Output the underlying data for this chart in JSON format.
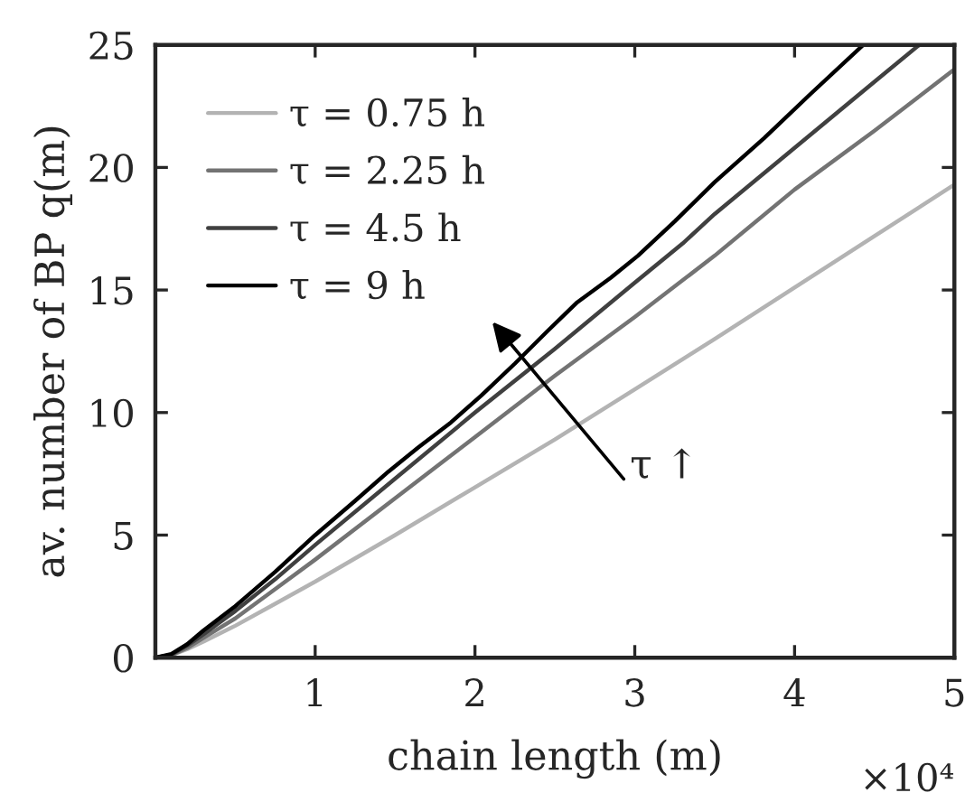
{
  "chart_data": {
    "type": "line",
    "xlabel": "chain length (m)",
    "ylabel": "av. number of BP q(m)",
    "xlim": [
      0,
      5
    ],
    "xticks": [
      1,
      2,
      3,
      4,
      5
    ],
    "ylim": [
      0,
      25
    ],
    "yticks": [
      0,
      5,
      10,
      15,
      20,
      25
    ],
    "legend": "top left",
    "line_style": "solid",
    "series": [
      {
        "name": "τ = 0.75 h",
        "color": "#b3b3b3",
        "x": [
          0,
          0.1,
          0.2,
          0.3,
          0.5,
          0.75,
          1,
          1.5,
          2,
          2.5,
          3,
          3.5,
          4,
          4.5,
          5
        ],
        "values": [
          0,
          0.1,
          0.35,
          0.65,
          1.3,
          2.2,
          3.1,
          5.0,
          6.95,
          8.9,
          10.95,
          13.0,
          15.1,
          17.2,
          19.3
        ]
      },
      {
        "name": "τ = 2.25 h",
        "color": "#737373",
        "x": [
          0,
          0.1,
          0.2,
          0.3,
          0.5,
          0.75,
          1,
          1.5,
          2,
          2.5,
          3,
          3.5,
          4,
          4.5,
          5
        ],
        "values": [
          0,
          0.1,
          0.4,
          0.8,
          1.6,
          2.8,
          4.0,
          6.5,
          9.0,
          11.5,
          13.9,
          16.4,
          19.1,
          21.5,
          24.0
        ]
      },
      {
        "name": "τ = 4.5 h",
        "color": "#404040",
        "x": [
          0,
          0.1,
          0.2,
          0.3,
          0.5,
          0.75,
          1,
          1.5,
          2,
          2.5,
          3,
          3.3,
          3.5,
          4,
          4.5,
          4.78
        ],
        "values": [
          0,
          0.12,
          0.5,
          0.95,
          1.9,
          3.2,
          4.6,
          7.3,
          10.0,
          12.6,
          15.3,
          16.9,
          18.1,
          20.8,
          23.5,
          25
        ]
      },
      {
        "name": "τ = 9 h",
        "color": "#000000",
        "x": [
          0,
          0.1,
          0.2,
          0.3,
          0.5,
          0.75,
          1,
          1.25,
          1.46,
          1.65,
          1.85,
          2.04,
          2.25,
          2.45,
          2.64,
          2.85,
          3.02,
          3.25,
          3.5,
          3.81,
          4.1,
          4.43
        ],
        "values": [
          0,
          0.15,
          0.55,
          1.1,
          2.1,
          3.5,
          5.0,
          6.4,
          7.6,
          8.6,
          9.6,
          10.7,
          12.0,
          13.3,
          14.5,
          15.5,
          16.4,
          17.8,
          19.4,
          21.2,
          23.0,
          25
        ]
      }
    ],
    "annotations": [
      "τ ↑",
      "×10⁴"
    ]
  }
}
